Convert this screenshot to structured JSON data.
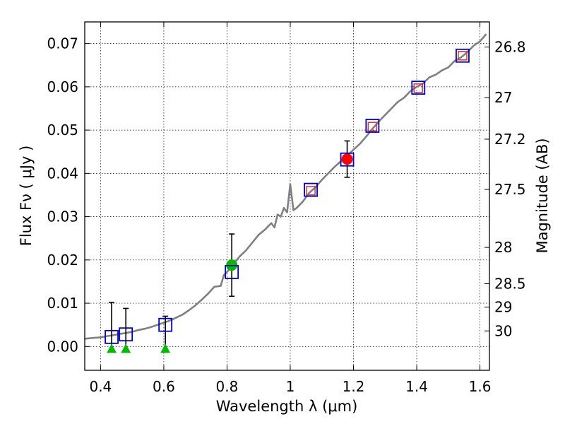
{
  "chart_data": {
    "type": "scatter",
    "title": "",
    "xlabel": "Wavelength  λ (μm)",
    "ylabel": "Flux  Fν  ( μJy )",
    "y2label": "Magnitude (AB)",
    "xlim": [
      0.35,
      1.63
    ],
    "ylim": [
      -0.0055,
      0.075
    ],
    "grid": true,
    "x_ticks": [
      0.4,
      0.6,
      0.8,
      1.0,
      1.2,
      1.4,
      1.6
    ],
    "x_tick_labels": [
      "0.4",
      "0.6",
      "0.8",
      "1",
      "1.2",
      "1.4",
      "1.6"
    ],
    "y_ticks": [
      0.0,
      0.01,
      0.02,
      0.03,
      0.04,
      0.05,
      0.06,
      0.07
    ],
    "y_tick_labels": [
      "0.00",
      "0.01",
      "0.02",
      "0.03",
      "0.04",
      "0.05",
      "0.06",
      "0.07"
    ],
    "y2_ticks": [
      {
        "label": "26.8",
        "flux": 0.0692
      },
      {
        "label": "27",
        "flux": 0.0575
      },
      {
        "label": "27.2",
        "flux": 0.0479
      },
      {
        "label": "27.5",
        "flux": 0.0363
      },
      {
        "label": "28",
        "flux": 0.0229
      },
      {
        "label": "28.5",
        "flux": 0.0145
      },
      {
        "label": "29",
        "flux": 0.0091
      },
      {
        "label": "30",
        "flux": 0.0036
      }
    ],
    "colors": {
      "sed_line": "#808080",
      "model_box": "#0000cc",
      "observed_square": "#dd3333",
      "detection_nir": "#ff0000",
      "detection_optical": "#00bb00",
      "upper_limit": "#00bb00",
      "errorbar": "#000000"
    },
    "series": [
      {
        "name": "SED template",
        "kind": "line",
        "x": [
          0.35,
          0.38,
          0.4,
          0.42,
          0.44,
          0.46,
          0.48,
          0.5,
          0.52,
          0.54,
          0.56,
          0.58,
          0.6,
          0.62,
          0.64,
          0.66,
          0.68,
          0.7,
          0.72,
          0.74,
          0.76,
          0.78,
          0.79,
          0.8,
          0.82,
          0.84,
          0.86,
          0.88,
          0.9,
          0.92,
          0.94,
          0.95,
          0.96,
          0.97,
          0.98,
          0.99,
          1.0,
          1.01,
          1.02,
          1.04,
          1.06,
          1.08,
          1.1,
          1.12,
          1.14,
          1.16,
          1.18,
          1.2,
          1.22,
          1.24,
          1.26,
          1.28,
          1.3,
          1.32,
          1.34,
          1.36,
          1.38,
          1.4,
          1.42,
          1.44,
          1.46,
          1.48,
          1.5,
          1.52,
          1.54,
          1.56,
          1.58,
          1.6,
          1.62
        ],
        "y": [
          0.0018,
          0.002,
          0.0021,
          0.0024,
          0.0026,
          0.0029,
          0.0031,
          0.0034,
          0.0038,
          0.0041,
          0.0045,
          0.005,
          0.0055,
          0.006,
          0.0067,
          0.0074,
          0.0084,
          0.0095,
          0.0108,
          0.0122,
          0.0138,
          0.014,
          0.0165,
          0.0172,
          0.019,
          0.0208,
          0.0222,
          0.024,
          0.0258,
          0.027,
          0.0285,
          0.0275,
          0.0305,
          0.03,
          0.032,
          0.031,
          0.0375,
          0.0315,
          0.032,
          0.0335,
          0.0355,
          0.0368,
          0.0385,
          0.04,
          0.0415,
          0.0428,
          0.044,
          0.0455,
          0.0468,
          0.0485,
          0.0503,
          0.052,
          0.0535,
          0.055,
          0.0565,
          0.0575,
          0.059,
          0.06,
          0.0608,
          0.0622,
          0.0628,
          0.0638,
          0.0645,
          0.066,
          0.0668,
          0.068,
          0.0695,
          0.0705,
          0.0722
        ]
      },
      {
        "name": "Model bandpass fluxes",
        "kind": "open-square",
        "x": [
          0.435,
          0.48,
          0.605,
          0.815,
          1.065,
          1.18,
          1.26,
          1.405,
          1.545
        ],
        "y": [
          0.0022,
          0.0028,
          0.005,
          0.0172,
          0.0362,
          0.0432,
          0.051,
          0.0598,
          0.0672
        ]
      },
      {
        "name": "Observed photometry (small squares)",
        "kind": "small-square",
        "x": [
          1.065,
          1.26,
          1.405,
          1.545
        ],
        "y": [
          0.036,
          0.0508,
          0.0597,
          0.0672
        ]
      },
      {
        "name": "NIR detection",
        "kind": "filled-circle",
        "x": [
          1.18
        ],
        "y": [
          0.0433
        ],
        "yerr": [
          0.0042
        ]
      },
      {
        "name": "Optical detection",
        "kind": "filled-circle",
        "x": [
          0.815
        ],
        "y": [
          0.0188
        ],
        "yerr": [
          0.0072
        ]
      },
      {
        "name": "Upper limits",
        "kind": "triangle",
        "x": [
          0.435,
          0.48,
          0.605
        ],
        "y": [
          -0.0005,
          -0.0005,
          -0.0005
        ],
        "err_top": [
          0.0102,
          0.0088,
          0.007
        ]
      }
    ]
  }
}
